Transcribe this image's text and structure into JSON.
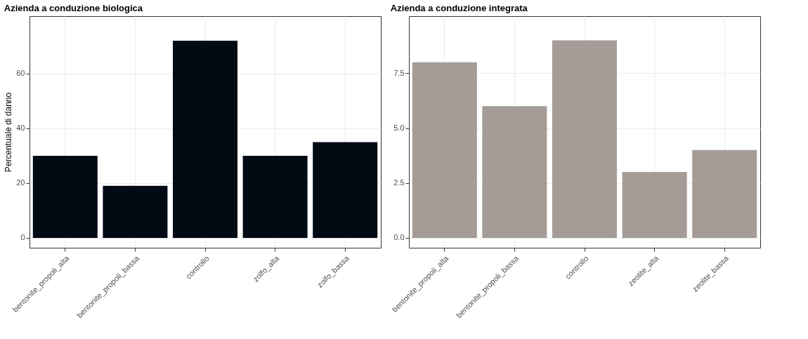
{
  "chart_data": [
    {
      "type": "bar",
      "title": "Azienda a conduzione biologica",
      "ylabel": "Percentuale di danno",
      "categories": [
        "bentonite_propoli_alta",
        "bentonite_propoli_bassa",
        "controllo",
        "zolfo_alta",
        "zolfo_bassa"
      ],
      "values": [
        30,
        19,
        72,
        30,
        35
      ],
      "color": "#020a14",
      "ylim": [
        -3.6,
        81
      ],
      "yticks": [
        0,
        20,
        40,
        60
      ],
      "grid": true
    },
    {
      "type": "bar",
      "title": "Azienda a conduzione integrata",
      "categories": [
        "bentonite_propoli_alta",
        "bentonite_propoli_bassa",
        "controllo",
        "zeolite_alta",
        "zeolite_bassa"
      ],
      "values": [
        8,
        6,
        9,
        3,
        4
      ],
      "color": "#a59c97",
      "ylim": [
        -0.45,
        10.1
      ],
      "yticks": [
        {
          "value": 0,
          "label": "0.0"
        },
        {
          "value": 2.5,
          "label": "2.5"
        },
        {
          "value": 5,
          "label": "5.0"
        },
        {
          "value": 7.5,
          "label": "7.5"
        }
      ],
      "grid": true
    }
  ]
}
